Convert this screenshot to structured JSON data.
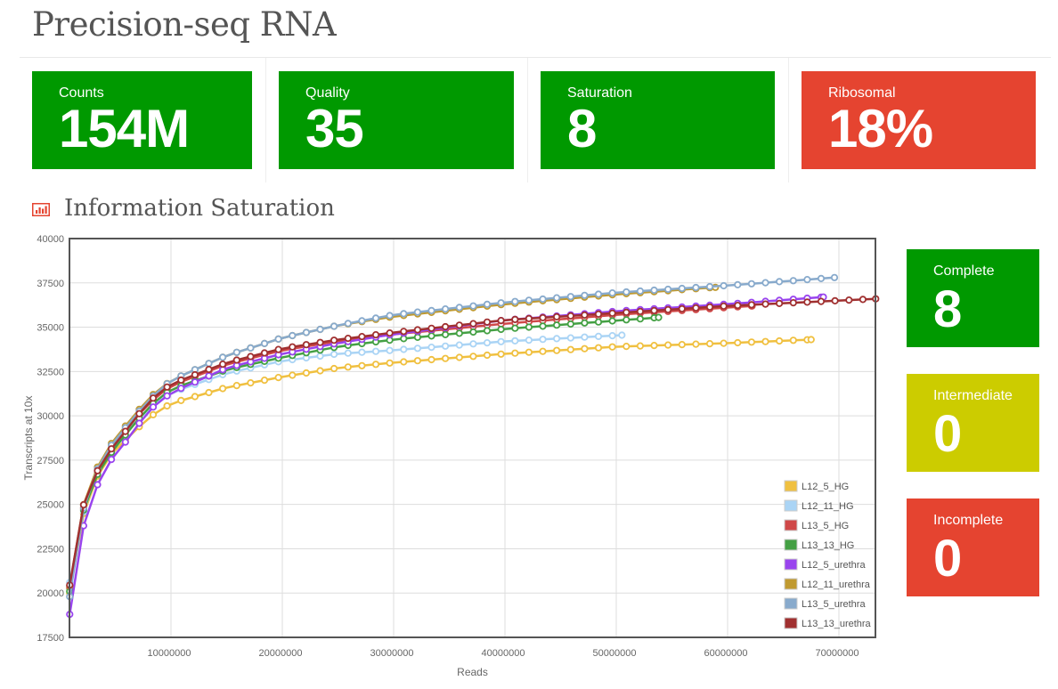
{
  "header": {
    "title": "Precision-seq RNA"
  },
  "stats": [
    {
      "label": "Counts",
      "value": "154M",
      "color": "#009900"
    },
    {
      "label": "Quality",
      "value": "35",
      "color": "#009900"
    },
    {
      "label": "Saturation",
      "value": "8",
      "color": "#009900"
    },
    {
      "label": "Ribosomal",
      "value": "18%",
      "color": "#e54430"
    }
  ],
  "section": {
    "title": "Information Saturation",
    "icon": "bar-chart-icon"
  },
  "status_tiles": [
    {
      "label": "Complete",
      "value": "8",
      "color": "#009900"
    },
    {
      "label": "Intermediate",
      "value": "0",
      "color": "#cccc00"
    },
    {
      "label": "Incomplete",
      "value": "0",
      "color": "#e54430"
    }
  ],
  "chart_data": {
    "type": "line",
    "title": "Information Saturation",
    "xlabel": "Reads",
    "ylabel": "Transcripts at 10x",
    "xlim": [
      900000,
      73300000
    ],
    "ylim": [
      17500,
      40000
    ],
    "xticks": [
      10000000,
      20000000,
      30000000,
      40000000,
      50000000,
      60000000,
      70000000
    ],
    "yticks": [
      17500,
      20000,
      22500,
      25000,
      27500,
      30000,
      32500,
      35000,
      37500,
      40000
    ],
    "grid": true,
    "legend_position": "bottom-right",
    "point_step": 1250000,
    "series": [
      {
        "name": "L12_5_HG",
        "color": "#f0c040",
        "anchors": [
          [
            0.9,
            20000
          ],
          [
            2.1,
            24400
          ],
          [
            3.3,
            26500
          ],
          [
            4.6,
            27800
          ],
          [
            6,
            28700
          ],
          [
            8,
            29900
          ],
          [
            10,
            30700
          ],
          [
            15,
            31600
          ],
          [
            20,
            32200
          ],
          [
            25,
            32700
          ],
          [
            30,
            33000
          ],
          [
            40,
            33500
          ],
          [
            50,
            33900
          ],
          [
            60,
            34100
          ],
          [
            67.5,
            34300
          ]
        ]
      },
      {
        "name": "L12_11_HG",
        "color": "#aad4f5",
        "anchors": [
          [
            0.9,
            20600
          ],
          [
            2.1,
            24500
          ],
          [
            3.3,
            26700
          ],
          [
            4.6,
            28000
          ],
          [
            6,
            29100
          ],
          [
            8,
            30400
          ],
          [
            10,
            31300
          ],
          [
            15,
            32400
          ],
          [
            20,
            33100
          ],
          [
            25,
            33500
          ],
          [
            30,
            33700
          ],
          [
            40,
            34200
          ],
          [
            50.5,
            34550
          ]
        ]
      },
      {
        "name": "L13_5_HG",
        "color": "#d04848",
        "anchors": [
          [
            0.9,
            20300
          ],
          [
            2.1,
            24700
          ],
          [
            3.3,
            26800
          ],
          [
            4.6,
            28100
          ],
          [
            6,
            29300
          ],
          [
            8,
            30700
          ],
          [
            10,
            31700
          ],
          [
            15,
            32900
          ],
          [
            20,
            33700
          ],
          [
            25,
            34200
          ],
          [
            30,
            34600
          ],
          [
            40,
            35200
          ],
          [
            50,
            35700
          ],
          [
            62.2,
            36200
          ]
        ]
      },
      {
        "name": "L13_13_HG",
        "color": "#44a044",
        "anchors": [
          [
            0.9,
            20100
          ],
          [
            2.1,
            24600
          ],
          [
            3.3,
            26600
          ],
          [
            4.6,
            27900
          ],
          [
            6,
            29000
          ],
          [
            8,
            30500
          ],
          [
            10,
            31500
          ],
          [
            15,
            32600
          ],
          [
            20,
            33300
          ],
          [
            25,
            33900
          ],
          [
            30,
            34300
          ],
          [
            40,
            34900
          ],
          [
            53.8,
            35550
          ]
        ]
      },
      {
        "name": "L12_5_urethra",
        "color": "#9944ee",
        "anchors": [
          [
            0.9,
            18800
          ],
          [
            2.1,
            23700
          ],
          [
            3.3,
            26000
          ],
          [
            4.6,
            27500
          ],
          [
            6,
            28600
          ],
          [
            8,
            30300
          ],
          [
            10,
            31300
          ],
          [
            15,
            32700
          ],
          [
            20,
            33500
          ],
          [
            25,
            34100
          ],
          [
            30,
            34600
          ],
          [
            40,
            35400
          ],
          [
            50,
            35900
          ],
          [
            60,
            36300
          ],
          [
            68.6,
            36700
          ]
        ]
      },
      {
        "name": "L12_11_urethra",
        "color": "#c09a30",
        "anchors": [
          [
            0.9,
            20400
          ],
          [
            2.1,
            24900
          ],
          [
            3.3,
            27000
          ],
          [
            4.6,
            28400
          ],
          [
            6,
            29500
          ],
          [
            8,
            31000
          ],
          [
            10,
            32000
          ],
          [
            15,
            33400
          ],
          [
            20,
            34400
          ],
          [
            25,
            35100
          ],
          [
            30,
            35600
          ],
          [
            40,
            36300
          ],
          [
            50,
            36850
          ],
          [
            58.9,
            37250
          ]
        ]
      },
      {
        "name": "L13_5_urethra",
        "color": "#88aacc",
        "anchors": [
          [
            0.9,
            19800
          ],
          [
            2.1,
            24700
          ],
          [
            3.3,
            26900
          ],
          [
            4.6,
            28300
          ],
          [
            6,
            29400
          ],
          [
            8,
            30900
          ],
          [
            10,
            32000
          ],
          [
            15,
            33400
          ],
          [
            20,
            34400
          ],
          [
            25,
            35100
          ],
          [
            30,
            35700
          ],
          [
            40,
            36400
          ],
          [
            50,
            36950
          ],
          [
            60,
            37350
          ],
          [
            69.6,
            37800
          ]
        ]
      },
      {
        "name": "L13_13_urethra",
        "color": "#a03030",
        "anchors": [
          [
            0.9,
            20450
          ],
          [
            2.1,
            24900
          ],
          [
            3.3,
            26800
          ],
          [
            4.6,
            28100
          ],
          [
            6,
            29200
          ],
          [
            8,
            30800
          ],
          [
            10,
            31800
          ],
          [
            15,
            33000
          ],
          [
            20,
            33800
          ],
          [
            25,
            34300
          ],
          [
            30,
            34700
          ],
          [
            40,
            35400
          ],
          [
            50,
            35800
          ],
          [
            60,
            36200
          ],
          [
            73.3,
            36600
          ]
        ]
      }
    ]
  }
}
